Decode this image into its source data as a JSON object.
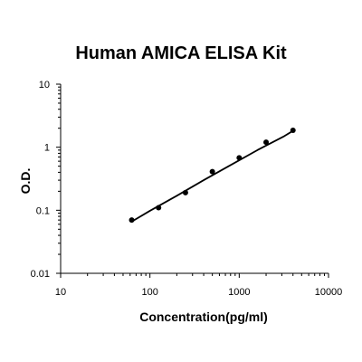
{
  "chart_data": {
    "type": "scatter",
    "title": "Human AMICA ELISA Kit",
    "xlabel": "Concentration(pg/ml)",
    "ylabel": "O.D.",
    "x_scale": "log",
    "y_scale": "log",
    "xlim": [
      10,
      10000
    ],
    "ylim": [
      0.01,
      10
    ],
    "x_ticks": [
      "10",
      "100",
      "1000",
      "10000"
    ],
    "y_ticks": [
      "0.01",
      "0.1",
      "1",
      "10"
    ],
    "grid": false,
    "legend": "none",
    "series": [
      {
        "x": [
          62.5,
          125,
          250,
          500,
          1000,
          2000,
          4000
        ],
        "y": [
          0.07,
          0.11,
          0.19,
          0.41,
          0.68,
          1.2,
          1.85
        ]
      }
    ],
    "fit_curve": {
      "x": [
        62.5,
        100,
        200,
        400,
        800,
        1600,
        3200,
        4000
      ],
      "y": [
        0.066,
        0.098,
        0.17,
        0.3,
        0.52,
        0.9,
        1.5,
        1.82
      ]
    },
    "colors": {
      "points": "#000000",
      "line": "#000000",
      "axis": "#000000"
    }
  }
}
